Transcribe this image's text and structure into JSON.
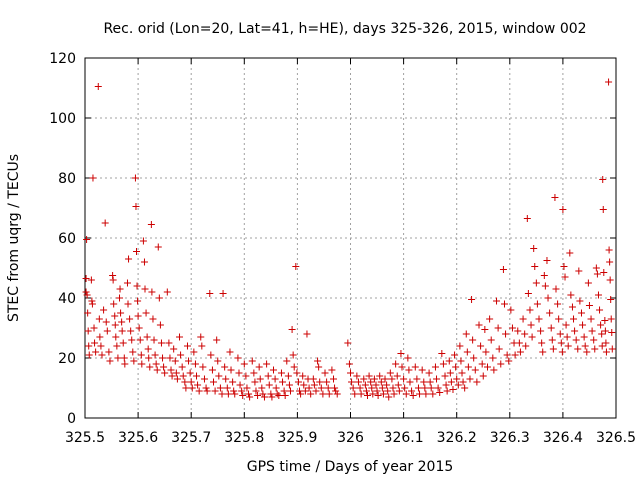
{
  "chart_data": {
    "type": "scatter",
    "title": "Rec. orid (Lon=20, Lat=41, h=HE), days 325-326, 2015, window 002",
    "xlabel": "GPS time / Days of year 2015",
    "ylabel": "STEC from uqrg / TECUs",
    "xlim": [
      325.5,
      326.5
    ],
    "ylim": [
      0,
      120
    ],
    "xticks": [
      "325.5",
      "325.6",
      "325.7",
      "325.8",
      "325.9",
      "326",
      "326.1",
      "326.2",
      "326.3",
      "326.4",
      "326.5"
    ],
    "yticks": [
      "0",
      "20",
      "40",
      "60",
      "80",
      "100",
      "120"
    ],
    "grid": true,
    "marker": "plus",
    "color": "#cc0000",
    "points": [
      [
        325.502,
        46.5
      ],
      [
        325.502,
        42.0
      ],
      [
        325.503,
        59.5
      ],
      [
        325.504,
        41.0
      ],
      [
        325.505,
        35.0
      ],
      [
        325.506,
        29.0
      ],
      [
        325.507,
        24.0
      ],
      [
        325.508,
        21.0
      ],
      [
        325.512,
        46.0
      ],
      [
        325.513,
        39.0
      ],
      [
        325.514,
        38.0
      ],
      [
        325.515,
        80.0
      ],
      [
        325.517,
        30.0
      ],
      [
        325.518,
        25.0
      ],
      [
        325.52,
        22.0
      ],
      [
        325.525,
        110.5
      ],
      [
        325.527,
        33.0
      ],
      [
        325.528,
        27.0
      ],
      [
        325.53,
        24.0
      ],
      [
        325.532,
        21.0
      ],
      [
        325.535,
        36.0
      ],
      [
        325.538,
        65.0
      ],
      [
        325.54,
        32.0
      ],
      [
        325.542,
        29.0
      ],
      [
        325.545,
        22.0
      ],
      [
        325.547,
        19.0
      ],
      [
        325.552,
        47.5
      ],
      [
        325.553,
        46.0
      ],
      [
        325.554,
        38.0
      ],
      [
        325.556,
        34.0
      ],
      [
        325.557,
        31.0
      ],
      [
        325.558,
        27.0
      ],
      [
        325.56,
        24.0
      ],
      [
        325.562,
        20.0
      ],
      [
        325.565,
        40.0
      ],
      [
        325.566,
        43.0
      ],
      [
        325.567,
        35.0
      ],
      [
        325.569,
        32.0
      ],
      [
        325.57,
        29.0
      ],
      [
        325.572,
        25.0
      ],
      [
        325.574,
        20.0
      ],
      [
        325.575,
        18.0
      ],
      [
        325.58,
        45.0
      ],
      [
        325.581,
        38.0
      ],
      [
        325.582,
        53.0
      ],
      [
        325.584,
        33.0
      ],
      [
        325.586,
        29.0
      ],
      [
        325.588,
        26.0
      ],
      [
        325.59,
        22.0
      ],
      [
        325.592,
        19.0
      ],
      [
        325.595,
        80.0
      ],
      [
        325.596,
        70.5
      ],
      [
        325.597,
        55.5
      ],
      [
        325.598,
        44.0
      ],
      [
        325.599,
        39.0
      ],
      [
        325.6,
        34.0
      ],
      [
        325.602,
        30.0
      ],
      [
        325.604,
        26.0
      ],
      [
        325.606,
        21.0
      ],
      [
        325.607,
        18.0
      ],
      [
        325.61,
        59.0
      ],
      [
        325.612,
        52.0
      ],
      [
        325.613,
        43.0
      ],
      [
        325.615,
        35.0
      ],
      [
        325.617,
        27.0
      ],
      [
        325.619,
        23.0
      ],
      [
        325.62,
        20.0
      ],
      [
        325.622,
        17.0
      ],
      [
        325.625,
        64.5
      ],
      [
        325.626,
        42.0
      ],
      [
        325.628,
        33.0
      ],
      [
        325.63,
        26.0
      ],
      [
        325.632,
        21.0
      ],
      [
        325.634,
        18.0
      ],
      [
        325.636,
        16.0
      ],
      [
        325.638,
        57.0
      ],
      [
        325.64,
        40.0
      ],
      [
        325.642,
        31.0
      ],
      [
        325.644,
        25.0
      ],
      [
        325.646,
        20.0
      ],
      [
        325.648,
        17.0
      ],
      [
        325.65,
        15.0
      ],
      [
        325.655,
        42.0
      ],
      [
        325.658,
        25.0
      ],
      [
        325.66,
        20.0
      ],
      [
        325.662,
        16.0
      ],
      [
        325.664,
        14.0
      ],
      [
        325.667,
        23.0
      ],
      [
        325.67,
        19.0
      ],
      [
        325.672,
        15.0
      ],
      [
        325.674,
        13.0
      ],
      [
        325.678,
        27.0
      ],
      [
        325.68,
        21.0
      ],
      [
        325.683,
        17.0
      ],
      [
        325.685,
        14.0
      ],
      [
        325.688,
        12.0
      ],
      [
        325.69,
        10.0
      ],
      [
        325.693,
        24.0
      ],
      [
        325.695,
        19.0
      ],
      [
        325.698,
        15.0
      ],
      [
        325.7,
        12.0
      ],
      [
        325.702,
        10.0
      ],
      [
        325.705,
        22.0
      ],
      [
        325.708,
        18.0
      ],
      [
        325.71,
        14.0
      ],
      [
        325.712,
        11.0
      ],
      [
        325.715,
        9.0
      ],
      [
        325.718,
        27.0
      ],
      [
        325.72,
        24.0
      ],
      [
        325.722,
        17.0
      ],
      [
        325.725,
        13.0
      ],
      [
        325.728,
        10.0
      ],
      [
        325.73,
        9.0
      ],
      [
        325.735,
        41.5
      ],
      [
        325.737,
        21.0
      ],
      [
        325.74,
        16.0
      ],
      [
        325.742,
        12.0
      ],
      [
        325.745,
        9.0
      ],
      [
        325.748,
        26.0
      ],
      [
        325.75,
        19.0
      ],
      [
        325.752,
        14.0
      ],
      [
        325.755,
        10.0
      ],
      [
        325.758,
        8.0
      ],
      [
        325.76,
        41.5
      ],
      [
        325.763,
        17.0
      ],
      [
        325.765,
        13.0
      ],
      [
        325.768,
        10.0
      ],
      [
        325.77,
        8.0
      ],
      [
        325.773,
        22.0
      ],
      [
        325.775,
        16.0
      ],
      [
        325.778,
        12.0
      ],
      [
        325.78,
        9.0
      ],
      [
        325.782,
        8.0
      ],
      [
        325.788,
        20.0
      ],
      [
        325.79,
        15.0
      ],
      [
        325.792,
        11.0
      ],
      [
        325.795,
        9.0
      ],
      [
        325.797,
        7.5
      ],
      [
        325.8,
        18.0
      ],
      [
        325.803,
        14.0
      ],
      [
        325.805,
        10.0
      ],
      [
        325.808,
        8.0
      ],
      [
        325.81,
        7.0
      ],
      [
        325.815,
        19.0
      ],
      [
        325.818,
        15.0
      ],
      [
        325.82,
        12.0
      ],
      [
        325.822,
        9.0
      ],
      [
        325.825,
        7.5
      ],
      [
        325.828,
        17.0
      ],
      [
        325.83,
        13.0
      ],
      [
        325.833,
        10.0
      ],
      [
        325.835,
        8.0
      ],
      [
        325.838,
        7.0
      ],
      [
        325.842,
        18.0
      ],
      [
        325.845,
        14.0
      ],
      [
        325.847,
        11.0
      ],
      [
        325.85,
        8.0
      ],
      [
        325.852,
        7.0
      ],
      [
        325.855,
        16.0
      ],
      [
        325.858,
        13.0
      ],
      [
        325.86,
        10.0
      ],
      [
        325.862,
        8.0
      ],
      [
        325.865,
        7.5
      ],
      [
        325.87,
        15.0
      ],
      [
        325.872,
        12.0
      ],
      [
        325.875,
        9.0
      ],
      [
        325.877,
        7.5
      ],
      [
        325.88,
        19.0
      ],
      [
        325.883,
        14.0
      ],
      [
        325.885,
        11.0
      ],
      [
        325.887,
        9.0
      ],
      [
        325.89,
        29.5
      ],
      [
        325.892,
        21.0
      ],
      [
        325.894,
        17.0
      ],
      [
        325.897,
        50.5
      ],
      [
        325.899,
        15.0
      ],
      [
        325.902,
        12.0
      ],
      [
        325.904,
        9.0
      ],
      [
        325.906,
        8.0
      ],
      [
        325.91,
        14.0
      ],
      [
        325.912,
        11.0
      ],
      [
        325.915,
        9.0
      ],
      [
        325.918,
        28.0
      ],
      [
        325.92,
        13.0
      ],
      [
        325.922,
        10.0
      ],
      [
        325.925,
        8.0
      ],
      [
        325.93,
        13.0
      ],
      [
        325.932,
        11.0
      ],
      [
        325.935,
        9.0
      ],
      [
        325.938,
        19.0
      ],
      [
        325.94,
        17.0
      ],
      [
        325.942,
        12.0
      ],
      [
        325.945,
        10.0
      ],
      [
        325.948,
        8.0
      ],
      [
        325.952,
        15.0
      ],
      [
        325.955,
        12.0
      ],
      [
        325.958,
        10.0
      ],
      [
        325.96,
        8.0
      ],
      [
        325.965,
        16.0
      ],
      [
        325.968,
        13.0
      ],
      [
        325.97,
        10.0
      ],
      [
        325.972,
        9.0
      ],
      [
        325.975,
        8.0
      ],
      [
        325.995,
        25.0
      ],
      [
        325.998,
        18.0
      ],
      [
        326.0,
        15.0
      ],
      [
        326.002,
        12.0
      ],
      [
        326.005,
        10.0
      ],
      [
        326.008,
        8.0
      ],
      [
        326.012,
        14.0
      ],
      [
        326.015,
        12.0
      ],
      [
        326.018,
        10.0
      ],
      [
        326.02,
        8.0
      ],
      [
        326.025,
        13.0
      ],
      [
        326.028,
        11.0
      ],
      [
        326.03,
        9.0
      ],
      [
        326.032,
        7.5
      ],
      [
        326.035,
        14.0
      ],
      [
        326.038,
        12.0
      ],
      [
        326.04,
        10.0
      ],
      [
        326.042,
        8.0
      ],
      [
        326.045,
        13.0
      ],
      [
        326.048,
        11.0
      ],
      [
        326.05,
        9.0
      ],
      [
        326.052,
        7.5
      ],
      [
        326.055,
        14.0
      ],
      [
        326.058,
        12.0
      ],
      [
        326.06,
        10.0
      ],
      [
        326.062,
        8.0
      ],
      [
        326.065,
        13.0
      ],
      [
        326.068,
        11.0
      ],
      [
        326.07,
        9.0
      ],
      [
        326.072,
        7.0
      ],
      [
        326.075,
        15.0
      ],
      [
        326.078,
        13.0
      ],
      [
        326.08,
        10.0
      ],
      [
        326.082,
        8.0
      ],
      [
        326.085,
        18.0
      ],
      [
        326.088,
        14.0
      ],
      [
        326.09,
        11.0
      ],
      [
        326.092,
        9.0
      ],
      [
        326.095,
        21.5
      ],
      [
        326.097,
        17.0
      ],
      [
        326.1,
        13.0
      ],
      [
        326.102,
        10.0
      ],
      [
        326.105,
        8.0
      ],
      [
        326.108,
        20.0
      ],
      [
        326.11,
        16.0
      ],
      [
        326.112,
        12.0
      ],
      [
        326.115,
        9.0
      ],
      [
        326.118,
        7.5
      ],
      [
        326.122,
        17.0
      ],
      [
        326.125,
        13.0
      ],
      [
        326.128,
        10.0
      ],
      [
        326.13,
        8.0
      ],
      [
        326.135,
        16.0
      ],
      [
        326.138,
        12.0
      ],
      [
        326.14,
        10.0
      ],
      [
        326.142,
        8.0
      ],
      [
        326.148,
        15.0
      ],
      [
        326.15,
        12.0
      ],
      [
        326.152,
        10.0
      ],
      [
        326.155,
        8.0
      ],
      [
        326.16,
        17.0
      ],
      [
        326.162,
        13.0
      ],
      [
        326.165,
        10.0
      ],
      [
        326.168,
        8.5
      ],
      [
        326.172,
        21.5
      ],
      [
        326.175,
        18.0
      ],
      [
        326.178,
        14.0
      ],
      [
        326.18,
        11.0
      ],
      [
        326.182,
        9.0
      ],
      [
        326.186,
        19.0
      ],
      [
        326.188,
        15.0
      ],
      [
        326.19,
        12.0
      ],
      [
        326.193,
        9.5
      ],
      [
        326.196,
        21.0
      ],
      [
        326.198,
        17.0
      ],
      [
        326.2,
        13.0
      ],
      [
        326.203,
        11.0
      ],
      [
        326.206,
        24.0
      ],
      [
        326.208,
        19.0
      ],
      [
        326.21,
        15.0
      ],
      [
        326.212,
        12.0
      ],
      [
        326.215,
        10.0
      ],
      [
        326.218,
        28.0
      ],
      [
        326.22,
        22.0
      ],
      [
        326.222,
        17.0
      ],
      [
        326.225,
        13.0
      ],
      [
        326.228,
        39.5
      ],
      [
        326.23,
        26.0
      ],
      [
        326.232,
        20.0
      ],
      [
        326.235,
        16.0
      ],
      [
        326.238,
        12.0
      ],
      [
        326.242,
        31.0
      ],
      [
        326.245,
        24.0
      ],
      [
        326.248,
        18.0
      ],
      [
        326.25,
        14.0
      ],
      [
        326.253,
        29.5
      ],
      [
        326.255,
        22.0
      ],
      [
        326.258,
        17.0
      ],
      [
        326.262,
        33.0
      ],
      [
        326.265,
        26.0
      ],
      [
        326.268,
        20.0
      ],
      [
        326.27,
        16.0
      ],
      [
        326.275,
        39.0
      ],
      [
        326.278,
        30.0
      ],
      [
        326.28,
        23.0
      ],
      [
        326.283,
        18.0
      ],
      [
        326.288,
        49.5
      ],
      [
        326.29,
        38.0
      ],
      [
        326.292,
        28.0
      ],
      [
        326.295,
        21.0
      ],
      [
        326.298,
        19.0
      ],
      [
        326.302,
        36.0
      ],
      [
        326.305,
        30.0
      ],
      [
        326.308,
        25.0
      ],
      [
        326.31,
        21.0
      ],
      [
        326.315,
        29.0
      ],
      [
        326.318,
        25.0
      ],
      [
        326.32,
        22.0
      ],
      [
        326.325,
        33.0
      ],
      [
        326.328,
        28.0
      ],
      [
        326.33,
        24.0
      ],
      [
        326.333,
        66.5
      ],
      [
        326.335,
        41.5
      ],
      [
        326.338,
        36.0
      ],
      [
        326.34,
        31.0
      ],
      [
        326.342,
        27.0
      ],
      [
        326.345,
        56.5
      ],
      [
        326.347,
        50.5
      ],
      [
        326.35,
        45.0
      ],
      [
        326.352,
        38.0
      ],
      [
        326.355,
        33.0
      ],
      [
        326.358,
        29.0
      ],
      [
        326.36,
        25.0
      ],
      [
        326.362,
        22.0
      ],
      [
        326.365,
        47.5
      ],
      [
        326.367,
        44.0
      ],
      [
        326.37,
        52.5
      ],
      [
        326.372,
        40.0
      ],
      [
        326.375,
        35.0
      ],
      [
        326.378,
        30.0
      ],
      [
        326.38,
        26.0
      ],
      [
        326.382,
        23.0
      ],
      [
        326.385,
        73.5
      ],
      [
        326.387,
        43.0
      ],
      [
        326.39,
        38.0
      ],
      [
        326.392,
        33.0
      ],
      [
        326.395,
        28.0
      ],
      [
        326.397,
        25.0
      ],
      [
        326.399,
        22.0
      ],
      [
        326.4,
        69.5
      ],
      [
        326.402,
        50.5
      ],
      [
        326.404,
        47.0
      ],
      [
        326.406,
        31.0
      ],
      [
        326.408,
        27.0
      ],
      [
        326.41,
        24.0
      ],
      [
        326.413,
        55.0
      ],
      [
        326.415,
        41.0
      ],
      [
        326.418,
        37.0
      ],
      [
        326.42,
        33.0
      ],
      [
        326.422,
        29.0
      ],
      [
        326.425,
        26.0
      ],
      [
        326.428,
        23.0
      ],
      [
        326.43,
        49.0
      ],
      [
        326.432,
        39.0
      ],
      [
        326.435,
        35.0
      ],
      [
        326.437,
        31.0
      ],
      [
        326.44,
        27.0
      ],
      [
        326.442,
        24.0
      ],
      [
        326.445,
        22.0
      ],
      [
        326.448,
        45.0
      ],
      [
        326.45,
        37.5
      ],
      [
        326.453,
        33.0
      ],
      [
        326.455,
        29.0
      ],
      [
        326.458,
        26.0
      ],
      [
        326.46,
        23.0
      ],
      [
        326.463,
        50.0
      ],
      [
        326.465,
        48.0
      ],
      [
        326.467,
        41.0
      ],
      [
        326.469,
        36.0
      ],
      [
        326.471,
        31.0
      ],
      [
        326.473,
        28.0
      ],
      [
        326.474,
        24.0
      ],
      [
        326.475,
        79.5
      ],
      [
        326.476,
        69.5
      ],
      [
        326.477,
        48.5
      ],
      [
        326.479,
        32.5
      ],
      [
        326.48,
        29.0
      ],
      [
        326.481,
        25.0
      ],
      [
        326.482,
        22.0
      ],
      [
        326.486,
        112.0
      ],
      [
        326.487,
        56.0
      ],
      [
        326.488,
        52.0
      ],
      [
        326.489,
        46.0
      ],
      [
        326.49,
        39.5
      ],
      [
        326.491,
        33.0
      ],
      [
        326.492,
        28.5
      ],
      [
        326.493,
        23.0
      ]
    ]
  }
}
